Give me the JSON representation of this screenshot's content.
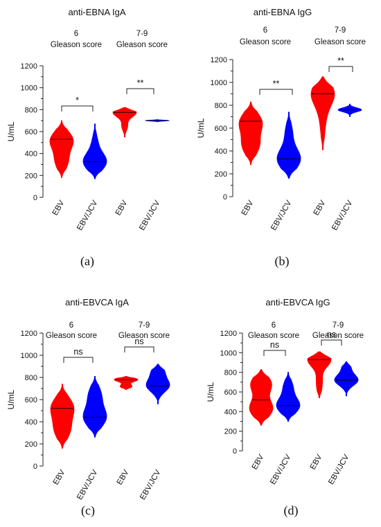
{
  "chart_data": [
    {
      "type": "violin",
      "panel_label": "(a)",
      "title": "anti-EBNA IgA",
      "ylabel": "U/mL",
      "ylim": [
        0,
        1200
      ],
      "yticks": [
        0,
        200,
        400,
        600,
        800,
        1000,
        1200
      ],
      "categories": [
        "EBV",
        "EBV/JCV",
        "EBV",
        "EBV/JCV"
      ],
      "groups": [
        {
          "label_line1": "6",
          "label_line2": "Gleason score",
          "significance": "*"
        },
        {
          "label_line1": "7-9",
          "label_line2": "Gleason score",
          "significance": "**"
        }
      ],
      "series": [
        {
          "category": "EBV",
          "color": "#ff0000",
          "min": 180,
          "max": 700,
          "median": 530,
          "modes": [
            [
              520,
              1.0
            ],
            [
              330,
              0.55
            ]
          ]
        },
        {
          "category": "EBV/JCV",
          "color": "#0000ff",
          "min": 170,
          "max": 670,
          "median": 325,
          "modes": [
            [
              325,
              1.0
            ],
            [
              500,
              0.22
            ]
          ]
        },
        {
          "category": "EBV",
          "color": "#ff0000",
          "min": 550,
          "max": 820,
          "median": 775,
          "modes": [
            [
              775,
              1.0
            ],
            [
              650,
              0.25
            ]
          ]
        },
        {
          "category": "EBV/JCV",
          "color": "#0000ff",
          "min": 690,
          "max": 710,
          "median": 700,
          "modes": [
            [
              700,
              1.0
            ]
          ]
        }
      ]
    },
    {
      "type": "violin",
      "panel_label": "(b)",
      "title": "anti-EBNA IgG",
      "ylabel": "U/mL",
      "ylim": [
        0,
        1200
      ],
      "yticks": [
        0,
        200,
        400,
        600,
        800,
        1000,
        1200
      ],
      "categories": [
        "EBV",
        "EBV/JCV",
        "EBV",
        "EBV/JCV"
      ],
      "groups": [
        {
          "label_line1": "6",
          "label_line2": "Gleason score",
          "significance": "**"
        },
        {
          "label_line1": "7-9",
          "label_line2": "Gleason score",
          "significance": "**"
        }
      ],
      "series": [
        {
          "category": "EBV",
          "color": "#ff0000",
          "min": 280,
          "max": 830,
          "median": 660,
          "modes": [
            [
              650,
              1.0
            ],
            [
              450,
              0.75
            ]
          ]
        },
        {
          "category": "EBV/JCV",
          "color": "#0000ff",
          "min": 160,
          "max": 740,
          "median": 330,
          "modes": [
            [
              330,
              1.0
            ],
            [
              560,
              0.3
            ]
          ]
        },
        {
          "category": "EBV",
          "color": "#ff0000",
          "min": 410,
          "max": 1050,
          "median": 900,
          "modes": [
            [
              905,
              1.0
            ],
            [
              720,
              0.22
            ],
            [
              550,
              0.12
            ]
          ]
        },
        {
          "category": "EBV/JCV",
          "color": "#0000ff",
          "min": 700,
          "max": 810,
          "median": 760,
          "modes": [
            [
              760,
              1.0
            ]
          ]
        }
      ]
    },
    {
      "type": "violin",
      "panel_label": "(c)",
      "title": "anti-EBVCA IgA",
      "ylabel": "U/mL",
      "ylim": [
        0,
        1200
      ],
      "yticks": [
        0,
        200,
        400,
        600,
        800,
        1000,
        1200
      ],
      "categories": [
        "EBV",
        "EBV/JCV",
        "EBV",
        "EBV/JCV"
      ],
      "groups": [
        {
          "label_line1": "6",
          "label_line2": "Gleason score",
          "significance": "ns"
        },
        {
          "label_line1": "7-9",
          "label_line2": "Gleason score",
          "significance": "ns"
        }
      ],
      "series": [
        {
          "category": "EBV",
          "color": "#ff0000",
          "min": 160,
          "max": 740,
          "median": 520,
          "modes": [
            [
              530,
              1.0
            ],
            [
              330,
              0.7
            ]
          ]
        },
        {
          "category": "EBV/JCV",
          "color": "#0000ff",
          "min": 260,
          "max": 810,
          "median": 440,
          "modes": [
            [
              440,
              1.0
            ],
            [
              640,
              0.55
            ]
          ]
        },
        {
          "category": "EBV",
          "color": "#ff0000",
          "min": 690,
          "max": 810,
          "median": 780,
          "modes": [
            [
              780,
              1.0
            ],
            [
              720,
              0.5
            ]
          ]
        },
        {
          "category": "EBV/JCV",
          "color": "#0000ff",
          "min": 560,
          "max": 920,
          "median": 725,
          "modes": [
            [
              725,
              1.0
            ],
            [
              850,
              0.55
            ]
          ]
        }
      ]
    },
    {
      "type": "violin",
      "panel_label": "(d)",
      "title": "anti-EBVCA IgG",
      "ylabel": "U/mL",
      "ylim": [
        0,
        1200
      ],
      "yticks": [
        0,
        200,
        400,
        600,
        800,
        1000,
        1200
      ],
      "categories": [
        "EBV",
        "EBV/JCV",
        "EBV",
        "EBV/JCV"
      ],
      "groups": [
        {
          "label_line1": "6",
          "label_line2": "Gleason score",
          "significance": "ns"
        },
        {
          "label_line1": "7-9",
          "label_line2": "Gleason score",
          "significance": "ns"
        }
      ],
      "series": [
        {
          "category": "EBV",
          "color": "#ff0000",
          "min": 260,
          "max": 830,
          "median": 520,
          "modes": [
            [
              430,
              1.0
            ],
            [
              680,
              0.9
            ]
          ]
        },
        {
          "category": "EBV/JCV",
          "color": "#0000ff",
          "min": 300,
          "max": 800,
          "median": 460,
          "modes": [
            [
              460,
              1.0
            ],
            [
              650,
              0.4
            ]
          ]
        },
        {
          "category": "EBV",
          "color": "#ff0000",
          "min": 540,
          "max": 1010,
          "median": 930,
          "modes": [
            [
              930,
              1.0
            ],
            [
              720,
              0.22
            ],
            [
              600,
              0.12
            ]
          ]
        },
        {
          "category": "EBV/JCV",
          "color": "#0000ff",
          "min": 560,
          "max": 910,
          "median": 720,
          "modes": [
            [
              720,
              1.0
            ],
            [
              850,
              0.35
            ]
          ]
        }
      ]
    }
  ]
}
